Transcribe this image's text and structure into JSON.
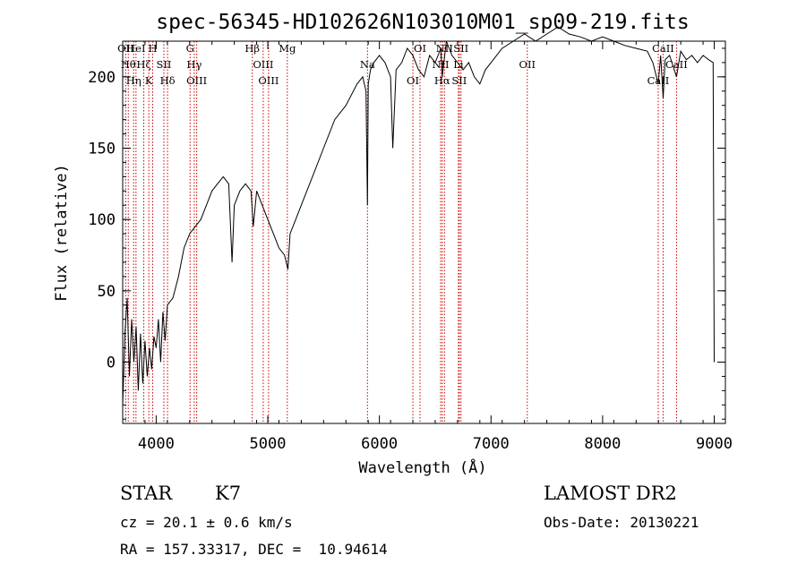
{
  "chart_data": {
    "type": "line",
    "title": "spec-56345-HD102626N103010M01_sp09-219.fits",
    "xlabel": "Wavelength (Å)",
    "ylabel": "Flux (relative)",
    "xlim": [
      3700,
      9100
    ],
    "ylim": [
      -43,
      225
    ],
    "xticks": [
      4000,
      5000,
      6000,
      7000,
      8000,
      9000
    ],
    "yticks": [
      0,
      50,
      100,
      150,
      200
    ],
    "line_color": "#000000",
    "marker_color": "#cc0000",
    "series": [
      {
        "x": [
          3700,
          3720,
          3740,
          3760,
          3780,
          3800,
          3820,
          3840,
          3860,
          3880,
          3900,
          3920,
          3940,
          3960,
          3980,
          4000,
          4020,
          4040,
          4060,
          4080,
          4100,
          4150,
          4200,
          4250,
          4300,
          4350,
          4400,
          4450,
          4500,
          4550,
          4600,
          4650,
          4680,
          4700,
          4750,
          4800,
          4850,
          4870,
          4900,
          4950,
          5000,
          5050,
          5100,
          5150,
          5180,
          5200,
          5250,
          5300,
          5400,
          5500,
          5600,
          5700,
          5800,
          5850,
          5880,
          5893,
          5900,
          5920,
          5950,
          6000,
          6050,
          6100,
          6120,
          6150,
          6200,
          6250,
          6300,
          6350,
          6400,
          6450,
          6500,
          6550,
          6563,
          6600,
          6650,
          6700,
          6750,
          6800,
          6850,
          6900,
          6950,
          7000,
          7100,
          7200,
          7300,
          7400,
          7500,
          7600,
          7700,
          7800,
          7900,
          8000,
          8100,
          8200,
          8300,
          8400,
          8450,
          8498,
          8520,
          8542,
          8560,
          8600,
          8662,
          8700,
          8750,
          8800,
          8850,
          8900,
          8950,
          8990,
          9000
        ],
        "y": [
          -30,
          20,
          45,
          -10,
          30,
          0,
          25,
          -20,
          20,
          -15,
          15,
          -10,
          10,
          -5,
          18,
          10,
          30,
          0,
          35,
          15,
          40,
          45,
          60,
          80,
          90,
          95,
          100,
          110,
          120,
          125,
          130,
          125,
          70,
          110,
          120,
          125,
          120,
          95,
          120,
          110,
          100,
          90,
          80,
          75,
          65,
          90,
          100,
          110,
          130,
          150,
          170,
          180,
          195,
          200,
          190,
          110,
          195,
          205,
          210,
          215,
          210,
          200,
          150,
          205,
          210,
          220,
          215,
          205,
          200,
          215,
          210,
          220,
          200,
          225,
          215,
          210,
          205,
          210,
          200,
          195,
          205,
          210,
          220,
          225,
          230,
          225,
          230,
          235,
          230,
          228,
          225,
          228,
          225,
          222,
          220,
          218,
          210,
          195,
          215,
          185,
          212,
          215,
          200,
          218,
          212,
          215,
          210,
          215,
          212,
          210,
          0
        ]
      }
    ],
    "lines": [
      {
        "wave": 3727,
        "labels": [
          "OII"
        ]
      },
      {
        "wave": 3750,
        "labels": [
          "Hθ"
        ]
      },
      {
        "wave": 3798,
        "labels": [
          "Hη"
        ]
      },
      {
        "wave": 3819,
        "labels": [
          "HeI"
        ]
      },
      {
        "wave": 3889,
        "labels": [
          "Hζ"
        ]
      },
      {
        "wave": 3934,
        "labels": [
          "K"
        ]
      },
      {
        "wave": 3969,
        "labels": [
          "H"
        ]
      },
      {
        "wave": 4069,
        "labels": [
          "SII"
        ]
      },
      {
        "wave": 4102,
        "labels": [
          "Hδ"
        ]
      },
      {
        "wave": 4304,
        "labels": [
          "G"
        ]
      },
      {
        "wave": 4341,
        "labels": [
          "Hγ"
        ]
      },
      {
        "wave": 4363,
        "labels": [
          "OIII"
        ]
      },
      {
        "wave": 4861,
        "labels": [
          "Hβ"
        ]
      },
      {
        "wave": 4959,
        "labels": [
          "OIII"
        ]
      },
      {
        "wave": 5007,
        "labels": [
          "OIII"
        ]
      },
      {
        "wave": 5175,
        "labels": [
          "Mg"
        ]
      },
      {
        "wave": 5893,
        "labels": [
          "Na"
        ]
      },
      {
        "wave": 6300,
        "labels": [
          "OI"
        ]
      },
      {
        "wave": 6364,
        "labels": [
          "OI"
        ]
      },
      {
        "wave": 6548,
        "labels": [
          "NII"
        ]
      },
      {
        "wave": 6563,
        "labels": [
          "Hα"
        ]
      },
      {
        "wave": 6583,
        "labels": [
          "NII"
        ]
      },
      {
        "wave": 6708,
        "labels": [
          "Li"
        ]
      },
      {
        "wave": 6716,
        "labels": [
          "SII"
        ]
      },
      {
        "wave": 6731,
        "labels": [
          "SII"
        ]
      },
      {
        "wave": 7325,
        "labels": [
          "OII"
        ]
      },
      {
        "wave": 8498,
        "labels": [
          "CaII"
        ]
      },
      {
        "wave": 8542,
        "labels": [
          "CaII"
        ]
      },
      {
        "wave": 8662,
        "labels": [
          "CaII"
        ]
      }
    ]
  },
  "info": {
    "object_class": "STAR",
    "subclass": "K7",
    "survey": "LAMOST DR2",
    "redshift": "cz = 20.1 ± 0.6 km/s",
    "obs_date": "Obs-Date: 20130221",
    "coords": "RA = 157.33317, DEC =  10.94614"
  }
}
